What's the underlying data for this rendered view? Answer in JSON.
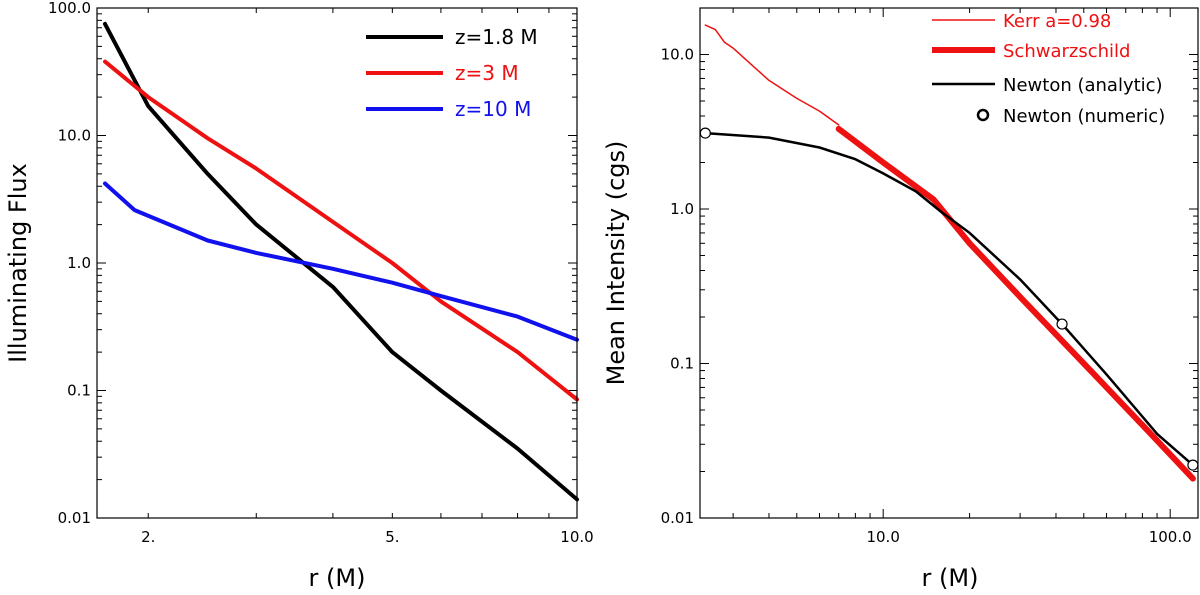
{
  "chart_data": [
    {
      "type": "line",
      "xscale": "log",
      "yscale": "log",
      "xlabel": "r (M)",
      "ylabel": "Illuminating Flux",
      "xlim": [
        1.65,
        10.0
      ],
      "ylim": [
        0.01,
        100.0
      ],
      "xticks": [
        2.0,
        5.0,
        10.0
      ],
      "xtick_labels": [
        "2.",
        "5.",
        "10.0"
      ],
      "yticks": [
        0.01,
        0.1,
        1.0,
        10.0,
        100.0
      ],
      "ytick_labels": [
        "0.01",
        "0.1",
        "1.0",
        "10.0",
        "100.0"
      ],
      "legend_position": "top-right",
      "series": [
        {
          "name": "z=1.8 M",
          "color": "#000000",
          "x": [
            1.7,
            2.0,
            2.5,
            3.0,
            4.0,
            5.0,
            6.0,
            8.0,
            10.0
          ],
          "y": [
            75,
            17,
            5,
            2,
            0.65,
            0.2,
            0.1,
            0.035,
            0.014
          ]
        },
        {
          "name": "z=3 M",
          "color": "#ee1111",
          "x": [
            1.7,
            2.0,
            2.5,
            3.0,
            4.0,
            5.0,
            6.0,
            8.0,
            10.0
          ],
          "y": [
            38,
            20,
            9.5,
            5.5,
            2.1,
            1.0,
            0.5,
            0.2,
            0.085
          ]
        },
        {
          "name": "z=10 M",
          "color": "#1111ee",
          "x": [
            1.7,
            1.9,
            2.5,
            3.0,
            4.0,
            5.0,
            6.0,
            8.0,
            10.0
          ],
          "y": [
            4.2,
            2.6,
            1.5,
            1.2,
            0.9,
            0.7,
            0.55,
            0.38,
            0.25
          ]
        }
      ]
    },
    {
      "type": "line",
      "xscale": "log",
      "yscale": "log",
      "xlabel": "r (M)",
      "ylabel": "Mean Intensity (cgs)",
      "xlim": [
        2.3,
        125
      ],
      "ylim": [
        0.01,
        20
      ],
      "xticks": [
        10.0,
        100.0
      ],
      "xtick_labels": [
        "10.0",
        "100.0"
      ],
      "yticks": [
        0.01,
        0.1,
        1.0,
        10.0
      ],
      "ytick_labels": [
        "0.01",
        "0.1",
        "1.0",
        "10.0"
      ],
      "legend_position": "top-right",
      "series": [
        {
          "name": "Kerr a=0.98",
          "color": "#ee1111",
          "style": "thin",
          "x": [
            2.4,
            2.6,
            2.8,
            3.0,
            3.5,
            4.0,
            5.0,
            6.0,
            7.0
          ],
          "y": [
            15.5,
            14.5,
            12.0,
            11.0,
            8.5,
            6.8,
            5.2,
            4.3,
            3.5
          ]
        },
        {
          "name": "Schwarzschild",
          "color": "#ee1111",
          "style": "thick",
          "x": [
            7.0,
            10.0,
            15.0,
            20.0,
            30.0,
            50.0,
            80.0,
            120.0
          ],
          "y": [
            3.3,
            2.0,
            1.15,
            0.6,
            0.27,
            0.1,
            0.04,
            0.018
          ]
        },
        {
          "name": "Newton (analytic)",
          "color": "#000000",
          "style": "medium",
          "x": [
            2.4,
            4.0,
            6.0,
            8.0,
            10.0,
            13.0,
            16.0,
            20.0,
            30.0,
            42.0,
            60.0,
            90.0,
            120.0
          ],
          "y": [
            3.1,
            2.9,
            2.5,
            2.1,
            1.7,
            1.3,
            0.95,
            0.7,
            0.35,
            0.18,
            0.085,
            0.035,
            0.022
          ]
        },
        {
          "name": "Newton (numeric)",
          "color": "#000000",
          "style": "markers",
          "x": [
            2.4,
            42.0,
            120.0
          ],
          "y": [
            3.1,
            0.18,
            0.022
          ]
        }
      ]
    }
  ]
}
